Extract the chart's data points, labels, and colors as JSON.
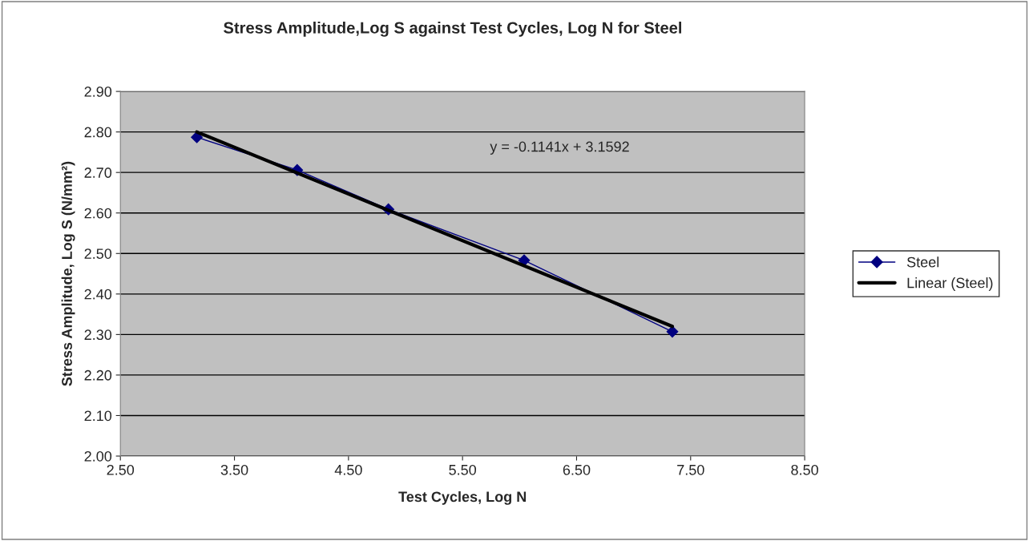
{
  "chart_data": {
    "type": "line",
    "title": "Stress Amplitude,Log S against Test Cycles, Log N for Steel",
    "xlabel": "Test Cycles, Log N",
    "ylabel": "Stress Amplitude, Log S (N/mm²)",
    "series": [
      {
        "name": "Steel",
        "color": "#000080",
        "marker": "diamond",
        "x": [
          3.17,
          4.05,
          4.85,
          6.04,
          7.34
        ],
        "values": [
          2.787,
          2.706,
          2.609,
          2.483,
          2.307
        ]
      },
      {
        "name": "Linear (Steel)",
        "color": "#000000",
        "marker": "none",
        "x": [
          3.17,
          7.34
        ],
        "values": [
          2.8,
          2.32
        ]
      }
    ],
    "annotations": [
      "y = -0.1141x + 3.1592"
    ],
    "xlim": [
      2.5,
      8.5
    ],
    "xticks": [
      {
        "value": 2.5,
        "label": "2.50"
      },
      {
        "value": 3.5,
        "label": "3.50"
      },
      {
        "value": 4.5,
        "label": "4.50"
      },
      {
        "value": 5.5,
        "label": "5.50"
      },
      {
        "value": 6.5,
        "label": "6.50"
      },
      {
        "value": 7.5,
        "label": "7.50"
      },
      {
        "value": 8.5,
        "label": "8.50"
      }
    ],
    "ylim": [
      2.0,
      2.9
    ],
    "yticks": [
      {
        "value": 2.0,
        "label": "2.00"
      },
      {
        "value": 2.1,
        "label": "2.10"
      },
      {
        "value": 2.2,
        "label": "2.20"
      },
      {
        "value": 2.3,
        "label": "2.30"
      },
      {
        "value": 2.4,
        "label": "2.40"
      },
      {
        "value": 2.5,
        "label": "2.50"
      },
      {
        "value": 2.6,
        "label": "2.60"
      },
      {
        "value": 2.7,
        "label": "2.70"
      },
      {
        "value": 2.8,
        "label": "2.80"
      },
      {
        "value": 2.9,
        "label": "2.90"
      }
    ],
    "grid": "y",
    "legend": "right"
  }
}
